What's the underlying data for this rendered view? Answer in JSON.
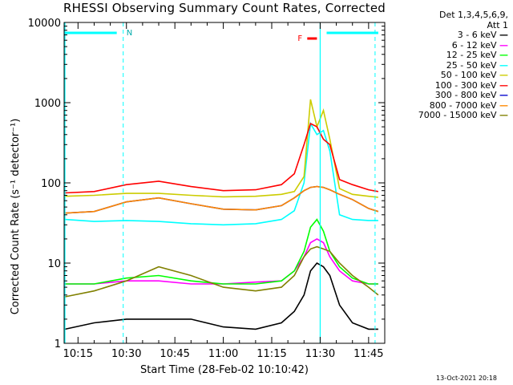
{
  "title": "RHESSI Observing Summary Count Rates, Corrected",
  "legend": {
    "detectors_line1": "Det 1,3,4,5,6,9,",
    "detectors_line2": "Att 1"
  },
  "timestamp": "13-Oct-2021 20:18",
  "chart_data": {
    "type": "line",
    "title": "RHESSI Observing Summary Count Rates, Corrected",
    "xlabel": "Start Time (28-Feb-02 10:10:42)",
    "ylabel": "Corrected Count Rate (s⁻¹ detector⁻¹)",
    "y_scale": "log",
    "ylim": [
      1,
      10000
    ],
    "xlim": [
      "10:10:42",
      "11:50:00"
    ],
    "x_ticks": [
      "10:15",
      "10:30",
      "10:45",
      "11:00",
      "11:15",
      "11:30",
      "11:45"
    ],
    "y_ticks": [
      "1",
      "10",
      "100",
      "1000",
      "10000"
    ],
    "x": [
      "10:11",
      "10:20",
      "10:30",
      "10:40",
      "10:50",
      "11:00",
      "11:10",
      "11:18",
      "11:22",
      "11:25",
      "11:27",
      "11:29",
      "11:31",
      "11:33",
      "11:36",
      "11:40",
      "11:45",
      "11:48"
    ],
    "series": [
      {
        "name": "3 - 6 keV",
        "color": "#000000",
        "values": [
          1.5,
          1.8,
          2,
          2,
          2,
          1.6,
          1.5,
          1.8,
          2.5,
          4,
          8,
          10,
          9,
          7,
          3,
          1.8,
          1.5,
          1.5
        ]
      },
      {
        "name": "6 - 12 keV",
        "color": "#ff00ff",
        "values": [
          5.5,
          5.5,
          6,
          6,
          5.5,
          5.5,
          5.8,
          6,
          8,
          12,
          18,
          20,
          18,
          12,
          8,
          6,
          5.5,
          5.5
        ]
      },
      {
        "name": "12 - 25 keV",
        "color": "#00ff00",
        "values": [
          5.5,
          5.5,
          6.5,
          7,
          6,
          5.5,
          5.5,
          6,
          8,
          14,
          28,
          35,
          25,
          14,
          9,
          6.5,
          5.5,
          5.5
        ]
      },
      {
        "name": "25 - 50 keV",
        "color": "#00ffff",
        "values": [
          35,
          33,
          34,
          33,
          31,
          30,
          31,
          35,
          45,
          100,
          550,
          400,
          450,
          250,
          40,
          35,
          34,
          34
        ]
      },
      {
        "name": "50 - 100 keV",
        "color": "#cccc00",
        "values": [
          68,
          70,
          74,
          74,
          70,
          67,
          68,
          72,
          78,
          120,
          1100,
          500,
          800,
          350,
          85,
          72,
          68,
          66
        ]
      },
      {
        "name": "100 - 300 keV",
        "color": "#ff0000",
        "values": [
          75,
          78,
          95,
          105,
          90,
          80,
          82,
          95,
          130,
          300,
          550,
          500,
          350,
          300,
          110,
          95,
          82,
          78
        ]
      },
      {
        "name": "300 - 800 keV",
        "color": "#0000cc",
        "values": [
          42,
          44,
          58,
          65,
          55,
          47,
          46,
          52,
          65,
          80,
          88,
          90,
          88,
          82,
          72,
          62,
          48,
          44
        ]
      },
      {
        "name": "800 - 7000 keV",
        "color": "#ff8800",
        "values": [
          42,
          44,
          58,
          65,
          55,
          47,
          46,
          52,
          65,
          80,
          88,
          90,
          88,
          82,
          72,
          62,
          48,
          44
        ]
      },
      {
        "name": "7000 - 15000 keV",
        "color": "#808000",
        "values": [
          3.8,
          4.5,
          6,
          9,
          7,
          5,
          4.5,
          5,
          7,
          12,
          15,
          16,
          15,
          14,
          10,
          7,
          5,
          4
        ]
      }
    ],
    "flags": {
      "night_label": "N",
      "flare_label": "F"
    }
  }
}
